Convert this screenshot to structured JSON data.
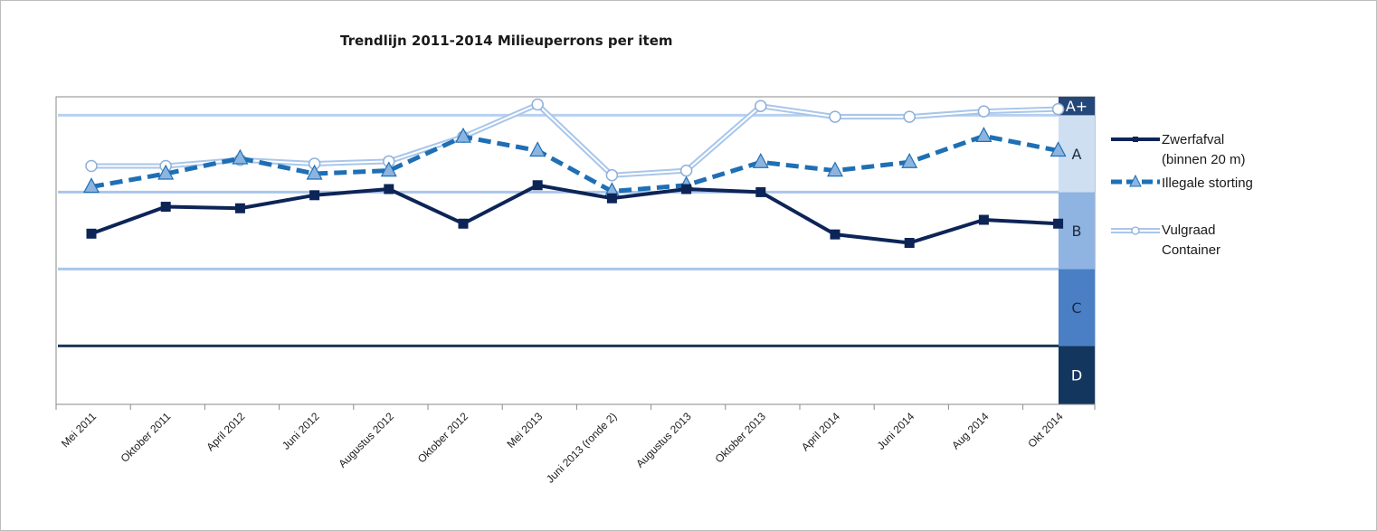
{
  "chart_data": {
    "type": "line",
    "title": "Trendlijn 2011-2014 Milieuperrons per item",
    "xlabel": "",
    "ylabel": "",
    "ylim": [
      0,
      4
    ],
    "grid": false,
    "legend_position": "right",
    "categories": [
      "Mei 2011",
      "Oktober 2011",
      "April 2012",
      "Juni 2012",
      "Augustus 2012",
      "Oktober 2012",
      "Mei 2013",
      "Juni 2013 (ronde 2)",
      "Augustus 2013",
      "Oktober 2013",
      "April 2014",
      "Juni 2014",
      "Aug 2014",
      "Okt 2014"
    ],
    "series": [
      {
        "name": "Zwerfafval (binnen 20 m)",
        "legend_lines": [
          "Zwerfafval",
          "(binnen 20 m)"
        ],
        "color": "#0d2457",
        "style": "solid",
        "marker": "square",
        "values": [
          2.22,
          2.57,
          2.55,
          2.72,
          2.8,
          2.35,
          2.85,
          2.68,
          2.8,
          2.76,
          2.21,
          2.1,
          2.4,
          2.35
        ]
      },
      {
        "name": "Illegale storting",
        "legend_lines": [
          "Illegale storting"
        ],
        "color": "#1f6fb4",
        "marker_fill": "#8cb4e0",
        "style": "dashed",
        "marker": "triangle",
        "values": [
          2.83,
          3.0,
          3.2,
          3.0,
          3.04,
          3.48,
          3.3,
          2.77,
          2.85,
          3.15,
          3.04,
          3.15,
          3.49,
          3.3
        ]
      },
      {
        "name": "Vulgraad Container",
        "legend_lines": [
          "Vulgraad",
          "Container"
        ],
        "color": "#a9c6ea",
        "marker_fill": "#ffffff",
        "style": "double",
        "marker": "circle",
        "values": [
          3.1,
          3.1,
          3.18,
          3.13,
          3.16,
          3.48,
          3.9,
          2.98,
          3.04,
          3.88,
          3.74,
          3.74,
          3.81,
          3.84
        ]
      }
    ],
    "bands": [
      {
        "label": "D",
        "from": 0.0,
        "to": 0.76,
        "color": "#13365f",
        "text_color": "#ffffff"
      },
      {
        "label": "C",
        "from": 0.76,
        "to": 1.76,
        "color": "#4a7fc6",
        "text_color": "#1f2a3a"
      },
      {
        "label": "B",
        "from": 1.76,
        "to": 2.76,
        "color": "#8fb4e1",
        "text_color": "#1f2a3a"
      },
      {
        "label": "A",
        "from": 2.76,
        "to": 3.76,
        "color": "#cfdff2",
        "text_color": "#1f2a3a"
      },
      {
        "label": "A+",
        "from": 3.76,
        "to": 4.0,
        "color": "#24477a",
        "text_color": "#ffffff"
      }
    ],
    "threshold_lines": [
      {
        "value": 3.76,
        "color": "#b9d0ee",
        "width": 3
      },
      {
        "value": 2.76,
        "color": "#a9c6ea",
        "width": 3
      },
      {
        "value": 1.76,
        "color": "#a9c6ea",
        "width": 3
      },
      {
        "value": 0.76,
        "color": "#1b3658",
        "width": 3
      }
    ]
  }
}
